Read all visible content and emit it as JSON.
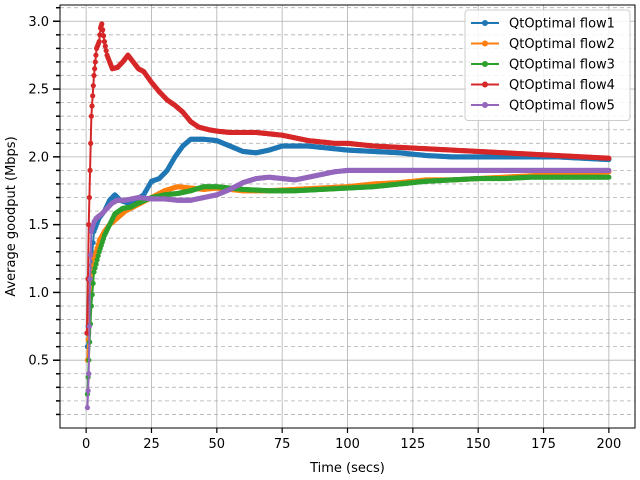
{
  "chart_data": {
    "type": "line",
    "title": "",
    "xlabel": "Time (secs)",
    "ylabel": "Average goodput (Mbps)",
    "xlim": [
      -10,
      210
    ],
    "ylim": [
      0.0,
      3.12
    ],
    "xticks": [
      0,
      25,
      50,
      75,
      100,
      125,
      150,
      175,
      200
    ],
    "yticks_major": [
      0.5,
      1.0,
      1.5,
      2.0,
      2.5,
      3.0
    ],
    "ytick_labels": [
      "0.5",
      "1.0",
      "1.5",
      "2.0",
      "2.5",
      "3.0"
    ],
    "yticks_minor": [
      0.1,
      0.2,
      0.3,
      0.4,
      0.6,
      0.7,
      0.8,
      0.9,
      1.1,
      1.2,
      1.3,
      1.4,
      1.6,
      1.7,
      1.8,
      1.9,
      2.1,
      2.2,
      2.3,
      2.4,
      2.6,
      2.7,
      2.8,
      2.9,
      3.1
    ],
    "grid": "major solid, minor dashed",
    "legend_position": "top-right",
    "series": [
      {
        "name": "QtOptimal flow1",
        "color": "#1f77b4",
        "points": [
          [
            0.5,
            0.6
          ],
          [
            1,
            0.9
          ],
          [
            2,
            1.2
          ],
          [
            3,
            1.45
          ],
          [
            5,
            1.55
          ],
          [
            7,
            1.6
          ],
          [
            9,
            1.68
          ],
          [
            11,
            1.72
          ],
          [
            13,
            1.68
          ],
          [
            16,
            1.66
          ],
          [
            19,
            1.68
          ],
          [
            22,
            1.72
          ],
          [
            25,
            1.82
          ],
          [
            28,
            1.84
          ],
          [
            31,
            1.9
          ],
          [
            34,
            2.0
          ],
          [
            37,
            2.08
          ],
          [
            40,
            2.13
          ],
          [
            45,
            2.13
          ],
          [
            50,
            2.12
          ],
          [
            55,
            2.08
          ],
          [
            60,
            2.04
          ],
          [
            65,
            2.03
          ],
          [
            70,
            2.05
          ],
          [
            75,
            2.08
          ],
          [
            80,
            2.08
          ],
          [
            85,
            2.08
          ],
          [
            90,
            2.07
          ],
          [
            95,
            2.06
          ],
          [
            100,
            2.05
          ],
          [
            110,
            2.04
          ],
          [
            120,
            2.03
          ],
          [
            130,
            2.01
          ],
          [
            140,
            2.0
          ],
          [
            150,
            2.0
          ],
          [
            160,
            2.0
          ],
          [
            170,
            2.0
          ],
          [
            180,
            2.0
          ],
          [
            190,
            1.99
          ],
          [
            200,
            1.98
          ]
        ]
      },
      {
        "name": "QtOptimal flow2",
        "color": "#ff7f0e",
        "points": [
          [
            0.5,
            0.5
          ],
          [
            1,
            0.8
          ],
          [
            2,
            1.1
          ],
          [
            3,
            1.25
          ],
          [
            5,
            1.38
          ],
          [
            7,
            1.45
          ],
          [
            9,
            1.5
          ],
          [
            12,
            1.55
          ],
          [
            15,
            1.6
          ],
          [
            20,
            1.65
          ],
          [
            25,
            1.7
          ],
          [
            30,
            1.75
          ],
          [
            35,
            1.78
          ],
          [
            40,
            1.77
          ],
          [
            45,
            1.76
          ],
          [
            50,
            1.77
          ],
          [
            55,
            1.76
          ],
          [
            60,
            1.75
          ],
          [
            70,
            1.75
          ],
          [
            80,
            1.76
          ],
          [
            90,
            1.77
          ],
          [
            100,
            1.78
          ],
          [
            110,
            1.8
          ],
          [
            120,
            1.81
          ],
          [
            130,
            1.83
          ],
          [
            140,
            1.83
          ],
          [
            150,
            1.84
          ],
          [
            160,
            1.85
          ],
          [
            170,
            1.86
          ],
          [
            180,
            1.87
          ],
          [
            190,
            1.88
          ],
          [
            200,
            1.89
          ]
        ]
      },
      {
        "name": "QtOptimal flow3",
        "color": "#2ca02c",
        "points": [
          [
            0.5,
            0.25
          ],
          [
            1,
            0.5
          ],
          [
            2,
            0.9
          ],
          [
            3,
            1.15
          ],
          [
            5,
            1.3
          ],
          [
            7,
            1.42
          ],
          [
            9,
            1.5
          ],
          [
            11,
            1.58
          ],
          [
            14,
            1.62
          ],
          [
            17,
            1.63
          ],
          [
            20,
            1.66
          ],
          [
            25,
            1.7
          ],
          [
            30,
            1.72
          ],
          [
            35,
            1.73
          ],
          [
            40,
            1.75
          ],
          [
            45,
            1.78
          ],
          [
            50,
            1.78
          ],
          [
            55,
            1.77
          ],
          [
            60,
            1.76
          ],
          [
            70,
            1.75
          ],
          [
            80,
            1.75
          ],
          [
            90,
            1.76
          ],
          [
            100,
            1.77
          ],
          [
            110,
            1.78
          ],
          [
            120,
            1.8
          ],
          [
            130,
            1.82
          ],
          [
            140,
            1.83
          ],
          [
            150,
            1.84
          ],
          [
            160,
            1.84
          ],
          [
            170,
            1.85
          ],
          [
            180,
            1.85
          ],
          [
            190,
            1.85
          ],
          [
            200,
            1.85
          ]
        ]
      },
      {
        "name": "QtOptimal flow4",
        "color": "#d62728",
        "points": [
          [
            0.3,
            0.7
          ],
          [
            0.7,
            1.1
          ],
          [
            1,
            1.5
          ],
          [
            1.5,
            1.9
          ],
          [
            2,
            2.3
          ],
          [
            2.5,
            2.45
          ],
          [
            3,
            2.6
          ],
          [
            3.5,
            2.7
          ],
          [
            4,
            2.8
          ],
          [
            5,
            2.85
          ],
          [
            5.5,
            2.95
          ],
          [
            6,
            2.98
          ],
          [
            7,
            2.85
          ],
          [
            8,
            2.75
          ],
          [
            9,
            2.7
          ],
          [
            10,
            2.65
          ],
          [
            12,
            2.66
          ],
          [
            14,
            2.7
          ],
          [
            16,
            2.75
          ],
          [
            18,
            2.7
          ],
          [
            20,
            2.65
          ],
          [
            22,
            2.63
          ],
          [
            25,
            2.55
          ],
          [
            28,
            2.48
          ],
          [
            31,
            2.42
          ],
          [
            34,
            2.38
          ],
          [
            37,
            2.33
          ],
          [
            40,
            2.26
          ],
          [
            43,
            2.22
          ],
          [
            47,
            2.2
          ],
          [
            50,
            2.19
          ],
          [
            55,
            2.18
          ],
          [
            60,
            2.18
          ],
          [
            65,
            2.18
          ],
          [
            70,
            2.17
          ],
          [
            75,
            2.16
          ],
          [
            80,
            2.14
          ],
          [
            85,
            2.12
          ],
          [
            90,
            2.11
          ],
          [
            95,
            2.1
          ],
          [
            100,
            2.1
          ],
          [
            110,
            2.08
          ],
          [
            120,
            2.07
          ],
          [
            130,
            2.06
          ],
          [
            140,
            2.05
          ],
          [
            150,
            2.04
          ],
          [
            160,
            2.03
          ],
          [
            170,
            2.02
          ],
          [
            180,
            2.01
          ],
          [
            190,
            2.0
          ],
          [
            200,
            1.99
          ]
        ]
      },
      {
        "name": "QtOptimal flow5",
        "color": "#9467bd",
        "points": [
          [
            0.5,
            0.15
          ],
          [
            1,
            0.4
          ],
          [
            1.5,
            1.1
          ],
          [
            2,
            1.45
          ],
          [
            3,
            1.52
          ],
          [
            4,
            1.55
          ],
          [
            6,
            1.58
          ],
          [
            8,
            1.62
          ],
          [
            10,
            1.66
          ],
          [
            12,
            1.68
          ],
          [
            15,
            1.68
          ],
          [
            20,
            1.7
          ],
          [
            25,
            1.69
          ],
          [
            30,
            1.69
          ],
          [
            35,
            1.68
          ],
          [
            40,
            1.68
          ],
          [
            45,
            1.7
          ],
          [
            50,
            1.72
          ],
          [
            55,
            1.76
          ],
          [
            60,
            1.81
          ],
          [
            65,
            1.84
          ],
          [
            70,
            1.85
          ],
          [
            75,
            1.84
          ],
          [
            80,
            1.83
          ],
          [
            85,
            1.85
          ],
          [
            90,
            1.87
          ],
          [
            95,
            1.89
          ],
          [
            100,
            1.9
          ],
          [
            110,
            1.9
          ],
          [
            120,
            1.9
          ],
          [
            130,
            1.9
          ],
          [
            140,
            1.9
          ],
          [
            150,
            1.9
          ],
          [
            160,
            1.9
          ],
          [
            170,
            1.9
          ],
          [
            180,
            1.9
          ],
          [
            190,
            1.9
          ],
          [
            200,
            1.9
          ]
        ]
      }
    ]
  }
}
